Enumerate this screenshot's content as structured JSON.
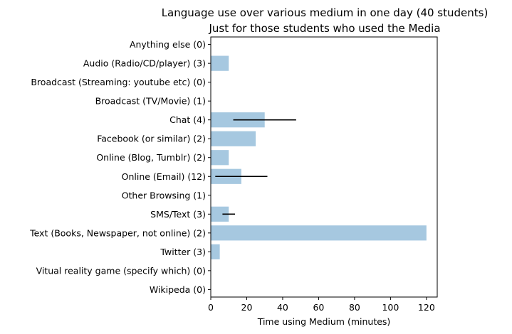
{
  "chart_data": {
    "type": "bar",
    "orientation": "horizontal",
    "title": "Language use over various medium in one day (40 students)",
    "subtitle": "Just for those students who used the Media",
    "xlabel": "Time using Medium (minutes)",
    "ylabel": "",
    "xlim": [
      0,
      126
    ],
    "xticks": [
      "0",
      "20",
      "40",
      "60",
      "80",
      "100",
      "120"
    ],
    "grid": false,
    "bar_color": "#a6c8e0",
    "error_color": "#000000",
    "categories": [
      "Anything else (0)",
      "Audio (Radio/CD/player) (3)",
      "Broadcast (Streaming: youtube etc) (0)",
      "Broadcast (TV/Movie) (1)",
      "Chat (4)",
      "Facebook (or similar) (2)",
      "Online (Blog, Tumblr) (2)",
      "Online (Email) (12)",
      "Other Browsing (1)",
      "SMS/Text (3)",
      "Text (Books, Newspaper, not online) (2)",
      "Twitter (3)",
      "Vitual reality game (specify which) (0)",
      "Wikipeda (0)"
    ],
    "values": [
      0,
      10,
      0,
      0,
      30,
      25,
      10,
      17,
      0,
      10,
      120,
      5,
      0,
      0
    ],
    "errors": [
      null,
      null,
      null,
      null,
      17.5,
      null,
      null,
      14.5,
      null,
      3.5,
      null,
      null,
      null,
      null
    ]
  }
}
